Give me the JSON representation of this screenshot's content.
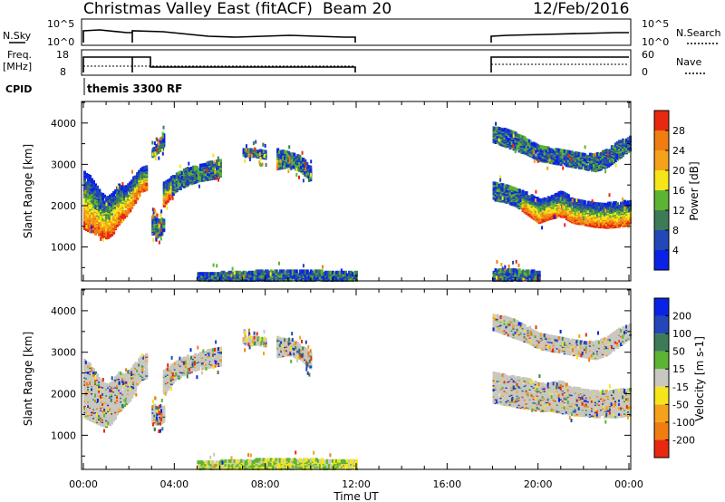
{
  "header": {
    "station": "Christmas Valley East (fitACF)",
    "beam": "Beam 20",
    "date": "12/Feb/2016"
  },
  "noise_panel": {
    "left_label": "N.Sky",
    "left_ticks": [
      "10^5",
      "10^0"
    ],
    "right_label": "N.Search",
    "right_ticks": [
      "10^5",
      "10^0"
    ]
  },
  "freq_panel": {
    "left_label_1": "Freq.",
    "left_label_2": "[MHz]",
    "left_ticks": [
      "18",
      "8"
    ],
    "right_label": "Nave",
    "right_ticks": [
      "60",
      "0"
    ]
  },
  "cpid": {
    "label": "CPID",
    "value": "themis 3300 RF"
  },
  "chart_data": [
    {
      "type": "heatmap",
      "panel": "power",
      "ylabel": "Slant Range [km]",
      "yticks": [
        1000,
        2000,
        3000,
        4000
      ],
      "ylim": [
        200,
        4500
      ],
      "xlim": [
        0,
        24
      ],
      "colorbar_label": "Power [dB]",
      "colorbar_ticks": [
        "4",
        "8",
        "12",
        "16",
        "20",
        "24",
        "28"
      ],
      "colors": [
        "#0a22e6",
        "#2346b8",
        "#3d7a58",
        "#5cb435",
        "#f5e51a",
        "#f5a21a",
        "#ef7d12",
        "#e8290f"
      ],
      "ground_scatter": false,
      "bands": [
        {
          "x": [
            0.0,
            0.25,
            0.5,
            0.75,
            1.0,
            1.25,
            1.5,
            1.75,
            2.0,
            2.25,
            2.5,
            2.75
          ],
          "lo": [
            1450,
            1380,
            1320,
            1250,
            1220,
            1320,
            1550,
            1720,
            1850,
            2100,
            2350,
            2400
          ],
          "hi": [
            2800,
            2700,
            2500,
            2300,
            2200,
            2300,
            2500,
            2450,
            2550,
            2750,
            2900,
            2950
          ]
        },
        {
          "x": [
            3.0,
            3.25,
            3.5
          ],
          "lo": [
            1320,
            1250,
            1350
          ],
          "hi": [
            1750,
            1650,
            1700
          ]
        },
        {
          "x": [
            3.5,
            4.0,
            4.5,
            5.0,
            5.5,
            6.0
          ],
          "lo": [
            2000,
            2350,
            2500,
            2600,
            2650,
            2700
          ],
          "hi": [
            2550,
            2750,
            2900,
            2950,
            3050,
            3100
          ]
        },
        {
          "x": [
            3.0,
            3.25,
            3.5
          ],
          "lo": [
            3200,
            3300,
            3450
          ],
          "hi": [
            3350,
            3500,
            3750
          ]
        },
        {
          "x": [
            8.5,
            9.0,
            9.5,
            10.0
          ],
          "lo": [
            2900,
            2950,
            2850,
            2600
          ],
          "hi": [
            3350,
            3300,
            3200,
            2950
          ]
        },
        {
          "x": [
            7.0,
            7.5,
            8.0
          ],
          "lo": [
            3200,
            3200,
            3150
          ],
          "hi": [
            3350,
            3350,
            3300
          ]
        },
        {
          "x": [
            18.0,
            18.5,
            19.0,
            19.5,
            20.0,
            20.5,
            21.0,
            21.5,
            22.0,
            22.5,
            23.0,
            23.5,
            24.0
          ],
          "lo": [
            2150,
            2100,
            2000,
            1800,
            1600,
            1700,
            1750,
            1600,
            1550,
            1500,
            1480,
            1500,
            1550
          ],
          "hi": [
            2550,
            2500,
            2400,
            2300,
            2150,
            2200,
            2350,
            2150,
            2100,
            2050,
            2050,
            2100,
            2100
          ]
        },
        {
          "x": [
            18.0,
            18.5,
            19.0,
            19.5,
            20.0,
            20.5,
            21.0,
            21.5,
            22.0,
            22.5,
            23.0,
            23.5,
            24.0
          ],
          "lo": [
            3550,
            3450,
            3350,
            3250,
            3100,
            3050,
            3000,
            2950,
            2900,
            2850,
            2950,
            3150,
            3350
          ],
          "hi": [
            3900,
            3850,
            3750,
            3600,
            3450,
            3400,
            3350,
            3300,
            3250,
            3250,
            3350,
            3550,
            3650
          ]
        },
        {
          "x": [
            5.0,
            6.0,
            7.0,
            8.0,
            9.0,
            10.0,
            11.0,
            12.0
          ],
          "lo": [
            200,
            200,
            200,
            200,
            200,
            200,
            200,
            200
          ],
          "hi": [
            350,
            380,
            400,
            420,
            420,
            420,
            400,
            380
          ]
        },
        {
          "x": [
            18.0,
            19.0,
            20.0
          ],
          "lo": [
            200,
            200,
            200
          ],
          "hi": [
            450,
            450,
            400
          ]
        }
      ]
    },
    {
      "type": "heatmap",
      "panel": "velocity",
      "ylabel": "Slant Range [km]",
      "yticks": [
        1000,
        2000,
        3000,
        4000
      ],
      "ylim": [
        200,
        4500
      ],
      "xlim": [
        0,
        24
      ],
      "xticks": [
        "00:00",
        "04:00",
        "08:00",
        "12:00",
        "16:00",
        "20:00",
        "00:00"
      ],
      "xlabel": "Time UT",
      "colorbar_label": "Velocity [m s-1]",
      "colorbar_ticks": [
        "200",
        "100",
        "50",
        "15",
        "-15",
        "-50",
        "-100",
        "-200"
      ],
      "colors": [
        "#0a22e6",
        "#2346b8",
        "#3d7a58",
        "#5cb435",
        "#c8c8c0",
        "#f5e51a",
        "#f5a21a",
        "#ef7d12",
        "#e8290f"
      ],
      "ground_scatter": true,
      "bands": [
        {
          "x": [
            0.0,
            0.25,
            0.5,
            0.75,
            1.0,
            1.25,
            1.5,
            1.75,
            2.0,
            2.25,
            2.5,
            2.75
          ],
          "lo": [
            1450,
            1380,
            1320,
            1250,
            1220,
            1320,
            1550,
            1720,
            1850,
            2100,
            2350,
            2400
          ],
          "hi": [
            2800,
            2700,
            2500,
            2300,
            2200,
            2300,
            2500,
            2450,
            2550,
            2750,
            2900,
            2950
          ]
        },
        {
          "x": [
            3.0,
            3.25,
            3.5
          ],
          "lo": [
            1320,
            1250,
            1350
          ],
          "hi": [
            1750,
            1650,
            1700
          ]
        },
        {
          "x": [
            3.5,
            4.0,
            4.5,
            5.0,
            5.5,
            6.0
          ],
          "lo": [
            2000,
            2350,
            2500,
            2600,
            2650,
            2700
          ],
          "hi": [
            2550,
            2750,
            2900,
            2950,
            3050,
            3100
          ]
        },
        {
          "x": [
            8.5,
            9.0,
            9.5,
            10.0
          ],
          "lo": [
            2900,
            2950,
            2850,
            2600
          ],
          "hi": [
            3350,
            3300,
            3200,
            2950
          ]
        },
        {
          "x": [
            7.0,
            7.5,
            8.0
          ],
          "lo": [
            3200,
            3200,
            3150
          ],
          "hi": [
            3350,
            3350,
            3300
          ]
        },
        {
          "x": [
            18.0,
            18.5,
            19.0,
            19.5,
            20.0,
            20.5,
            21.0,
            21.5,
            22.0,
            22.5,
            23.0,
            23.5,
            24.0
          ],
          "lo": [
            1800,
            1750,
            1700,
            1650,
            1600,
            1600,
            1550,
            1500,
            1480,
            1450,
            1450,
            1450,
            1500
          ],
          "hi": [
            2500,
            2450,
            2400,
            2350,
            2250,
            2250,
            2300,
            2150,
            2100,
            2050,
            2050,
            2100,
            2100
          ]
        },
        {
          "x": [
            18.0,
            18.5,
            19.0,
            19.5,
            20.0,
            20.5,
            21.0,
            21.5,
            22.0,
            22.5,
            23.0,
            23.5,
            24.0
          ],
          "lo": [
            3550,
            3450,
            3350,
            3250,
            3100,
            3050,
            3000,
            2950,
            2900,
            2850,
            2950,
            3150,
            3350
          ],
          "hi": [
            3900,
            3850,
            3750,
            3600,
            3450,
            3400,
            3350,
            3300,
            3250,
            3250,
            3350,
            3550,
            3650
          ]
        },
        {
          "x": [
            5.0,
            6.0,
            7.0,
            8.0,
            9.0,
            10.0,
            11.0,
            12.0
          ],
          "lo": [
            200,
            200,
            200,
            200,
            200,
            200,
            200,
            200
          ],
          "hi": [
            350,
            380,
            400,
            420,
            420,
            420,
            400,
            380
          ]
        }
      ]
    }
  ]
}
